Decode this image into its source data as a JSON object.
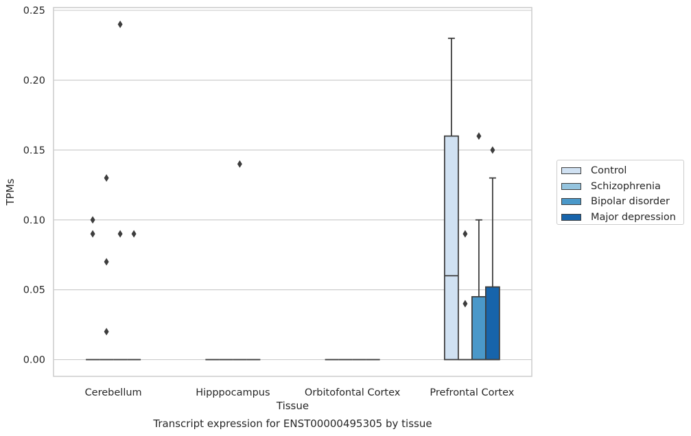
{
  "chart_data": {
    "type": "box",
    "title": "Transcript expression for ENST00000495305 by tissue",
    "xlabel": "Tissue",
    "ylabel": "TPMs",
    "ylim": [
      -0.012,
      0.252
    ],
    "yticks": [
      0.0,
      0.05,
      0.1,
      0.15,
      0.2,
      0.25
    ],
    "ytick_labels": [
      "0.00",
      "0.05",
      "0.10",
      "0.15",
      "0.20",
      "0.25"
    ],
    "categories": [
      "Cerebellum",
      "Hipppocampus",
      "Orbitofontal Cortex",
      "Prefrontal Cortex"
    ],
    "grid": "horizontal",
    "legend_position": "right",
    "series": [
      {
        "name": "Control",
        "color": "#d0e1f2",
        "boxes": [
          {
            "category": "Cerebellum",
            "q1": 0,
            "median": 0,
            "q3": 0,
            "whisker_low": 0,
            "whisker_high": 0,
            "outliers": [
              0.1,
              0.09
            ]
          },
          {
            "category": "Hipppocampus",
            "q1": 0,
            "median": 0,
            "q3": 0,
            "whisker_low": 0,
            "whisker_high": 0,
            "outliers": []
          },
          {
            "category": "Orbitofontal Cortex",
            "q1": 0,
            "median": 0,
            "q3": 0,
            "whisker_low": 0,
            "whisker_high": 0,
            "outliers": []
          },
          {
            "category": "Prefrontal Cortex",
            "q1": 0,
            "median": 0.06,
            "q3": 0.16,
            "whisker_low": 0,
            "whisker_high": 0.23,
            "outliers": []
          }
        ]
      },
      {
        "name": "Schizophrenia",
        "color": "#94c4df",
        "boxes": [
          {
            "category": "Cerebellum",
            "q1": 0,
            "median": 0,
            "q3": 0,
            "whisker_low": 0,
            "whisker_high": 0,
            "outliers": [
              0.13,
              0.07,
              0.02
            ]
          },
          {
            "category": "Hipppocampus",
            "q1": 0,
            "median": 0,
            "q3": 0,
            "whisker_low": 0,
            "whisker_high": 0,
            "outliers": []
          },
          {
            "category": "Orbitofontal Cortex",
            "q1": 0,
            "median": 0,
            "q3": 0,
            "whisker_low": 0,
            "whisker_high": 0,
            "outliers": []
          },
          {
            "category": "Prefrontal Cortex",
            "q1": 0,
            "median": 0,
            "q3": 0,
            "whisker_low": 0,
            "whisker_high": 0,
            "outliers": [
              0.09,
              0.04
            ]
          }
        ]
      },
      {
        "name": "Bipolar disorder",
        "color": "#4a98c9",
        "boxes": [
          {
            "category": "Cerebellum",
            "q1": 0,
            "median": 0,
            "q3": 0,
            "whisker_low": 0,
            "whisker_high": 0,
            "outliers": [
              0.24,
              0.09
            ]
          },
          {
            "category": "Hipppocampus",
            "q1": 0,
            "median": 0,
            "q3": 0,
            "whisker_low": 0,
            "whisker_high": 0,
            "outliers": [
              0.14
            ]
          },
          {
            "category": "Orbitofontal Cortex",
            "q1": 0,
            "median": 0,
            "q3": 0,
            "whisker_low": 0,
            "whisker_high": 0,
            "outliers": []
          },
          {
            "category": "Prefrontal Cortex",
            "q1": 0,
            "median": 0,
            "q3": 0.045,
            "whisker_low": 0,
            "whisker_high": 0.1,
            "outliers": [
              0.16
            ]
          }
        ]
      },
      {
        "name": "Major depression",
        "color": "#1764ab",
        "boxes": [
          {
            "category": "Cerebellum",
            "q1": 0,
            "median": 0,
            "q3": 0,
            "whisker_low": 0,
            "whisker_high": 0,
            "outliers": [
              0.09
            ]
          },
          {
            "category": "Hipppocampus",
            "q1": 0,
            "median": 0,
            "q3": 0,
            "whisker_low": 0,
            "whisker_high": 0,
            "outliers": []
          },
          {
            "category": "Orbitofontal Cortex",
            "q1": 0,
            "median": 0,
            "q3": 0,
            "whisker_low": 0,
            "whisker_high": 0,
            "outliers": []
          },
          {
            "category": "Prefrontal Cortex",
            "q1": 0,
            "median": 0,
            "q3": 0.052,
            "whisker_low": 0,
            "whisker_high": 0.13,
            "outliers": [
              0.15
            ]
          }
        ]
      }
    ]
  }
}
